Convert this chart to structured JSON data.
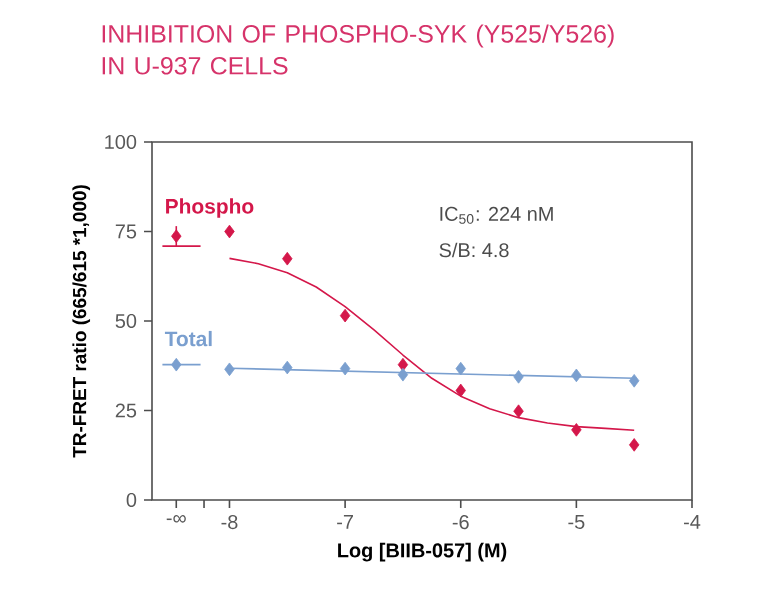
{
  "chart_data": {
    "type": "scatter",
    "title": "INHIBITION OF PHOSPHO-SYK (Y525/Y526) IN U-937 CELLS",
    "xlabel": "Log [BIIB-057] (M)",
    "ylabel": "TR-FRET ratio (665/615 *1,000)",
    "annotations": [
      "IC$_{50}$: 224 nM",
      "S/B: 4.8"
    ],
    "xlim": [
      -8.67,
      -4
    ],
    "ylim": [
      0,
      100
    ],
    "xticks": [
      {
        "value": -8.46,
        "label": "-∞"
      },
      {
        "value": -8.22,
        "label": null
      },
      -8,
      -7,
      -6,
      -5,
      -4
    ],
    "yticks": [
      0,
      25,
      50,
      75,
      100
    ],
    "marker": "diamond",
    "legend": false,
    "grid": false,
    "series": [
      {
        "name": "Phospho",
        "color": "#d4174a",
        "x": [
          -8.46,
          -8,
          -7.5,
          -7,
          -6.5,
          -6,
          -5.5,
          -5,
          -4.5
        ],
        "values": [
          73.7,
          75,
          67.4,
          51.5,
          37.8,
          30.6,
          24.8,
          19.6,
          15.4
        ],
        "errors": [
          2.8,
          null,
          null,
          null,
          null,
          null,
          null,
          null,
          null
        ]
      },
      {
        "type": "line",
        "marker": "none",
        "color": "#d4174a",
        "x": [
          -8.58,
          -8.25
        ],
        "values": [
          70.9,
          70.9
        ]
      },
      {
        "type": "line",
        "marker": "none",
        "color": "#d4174a",
        "x": [
          -8,
          -7.75,
          -7.5,
          -7.25,
          -7,
          -6.75,
          -6.5,
          -6.25,
          -6,
          -5.75,
          -5.5,
          -5.25,
          -5,
          -4.75,
          -4.5
        ],
        "values": [
          67.5,
          66,
          63.5,
          59.5,
          54,
          47.5,
          40.5,
          34,
          29,
          25.5,
          23,
          21.5,
          20.5,
          20,
          19.5
        ]
      },
      {
        "name": "Total",
        "color": "#7a9fcf",
        "x": [
          -8.46,
          -8,
          -7.5,
          -7,
          -6.5,
          -6,
          -5.5,
          -5,
          -4.5
        ],
        "values": [
          37.8,
          36.5,
          37.0,
          36.7,
          35,
          36.7,
          34.4,
          34.8,
          33.3
        ]
      },
      {
        "type": "line",
        "marker": "none",
        "color": "#7a9fcf",
        "x": [
          -8.58,
          -8.25
        ],
        "values": [
          37.8,
          37.8
        ]
      },
      {
        "type": "line",
        "marker": "none",
        "color": "#7a9fcf",
        "x": [
          -8,
          -4.5
        ],
        "values": [
          36.8,
          34.0
        ]
      }
    ]
  }
}
